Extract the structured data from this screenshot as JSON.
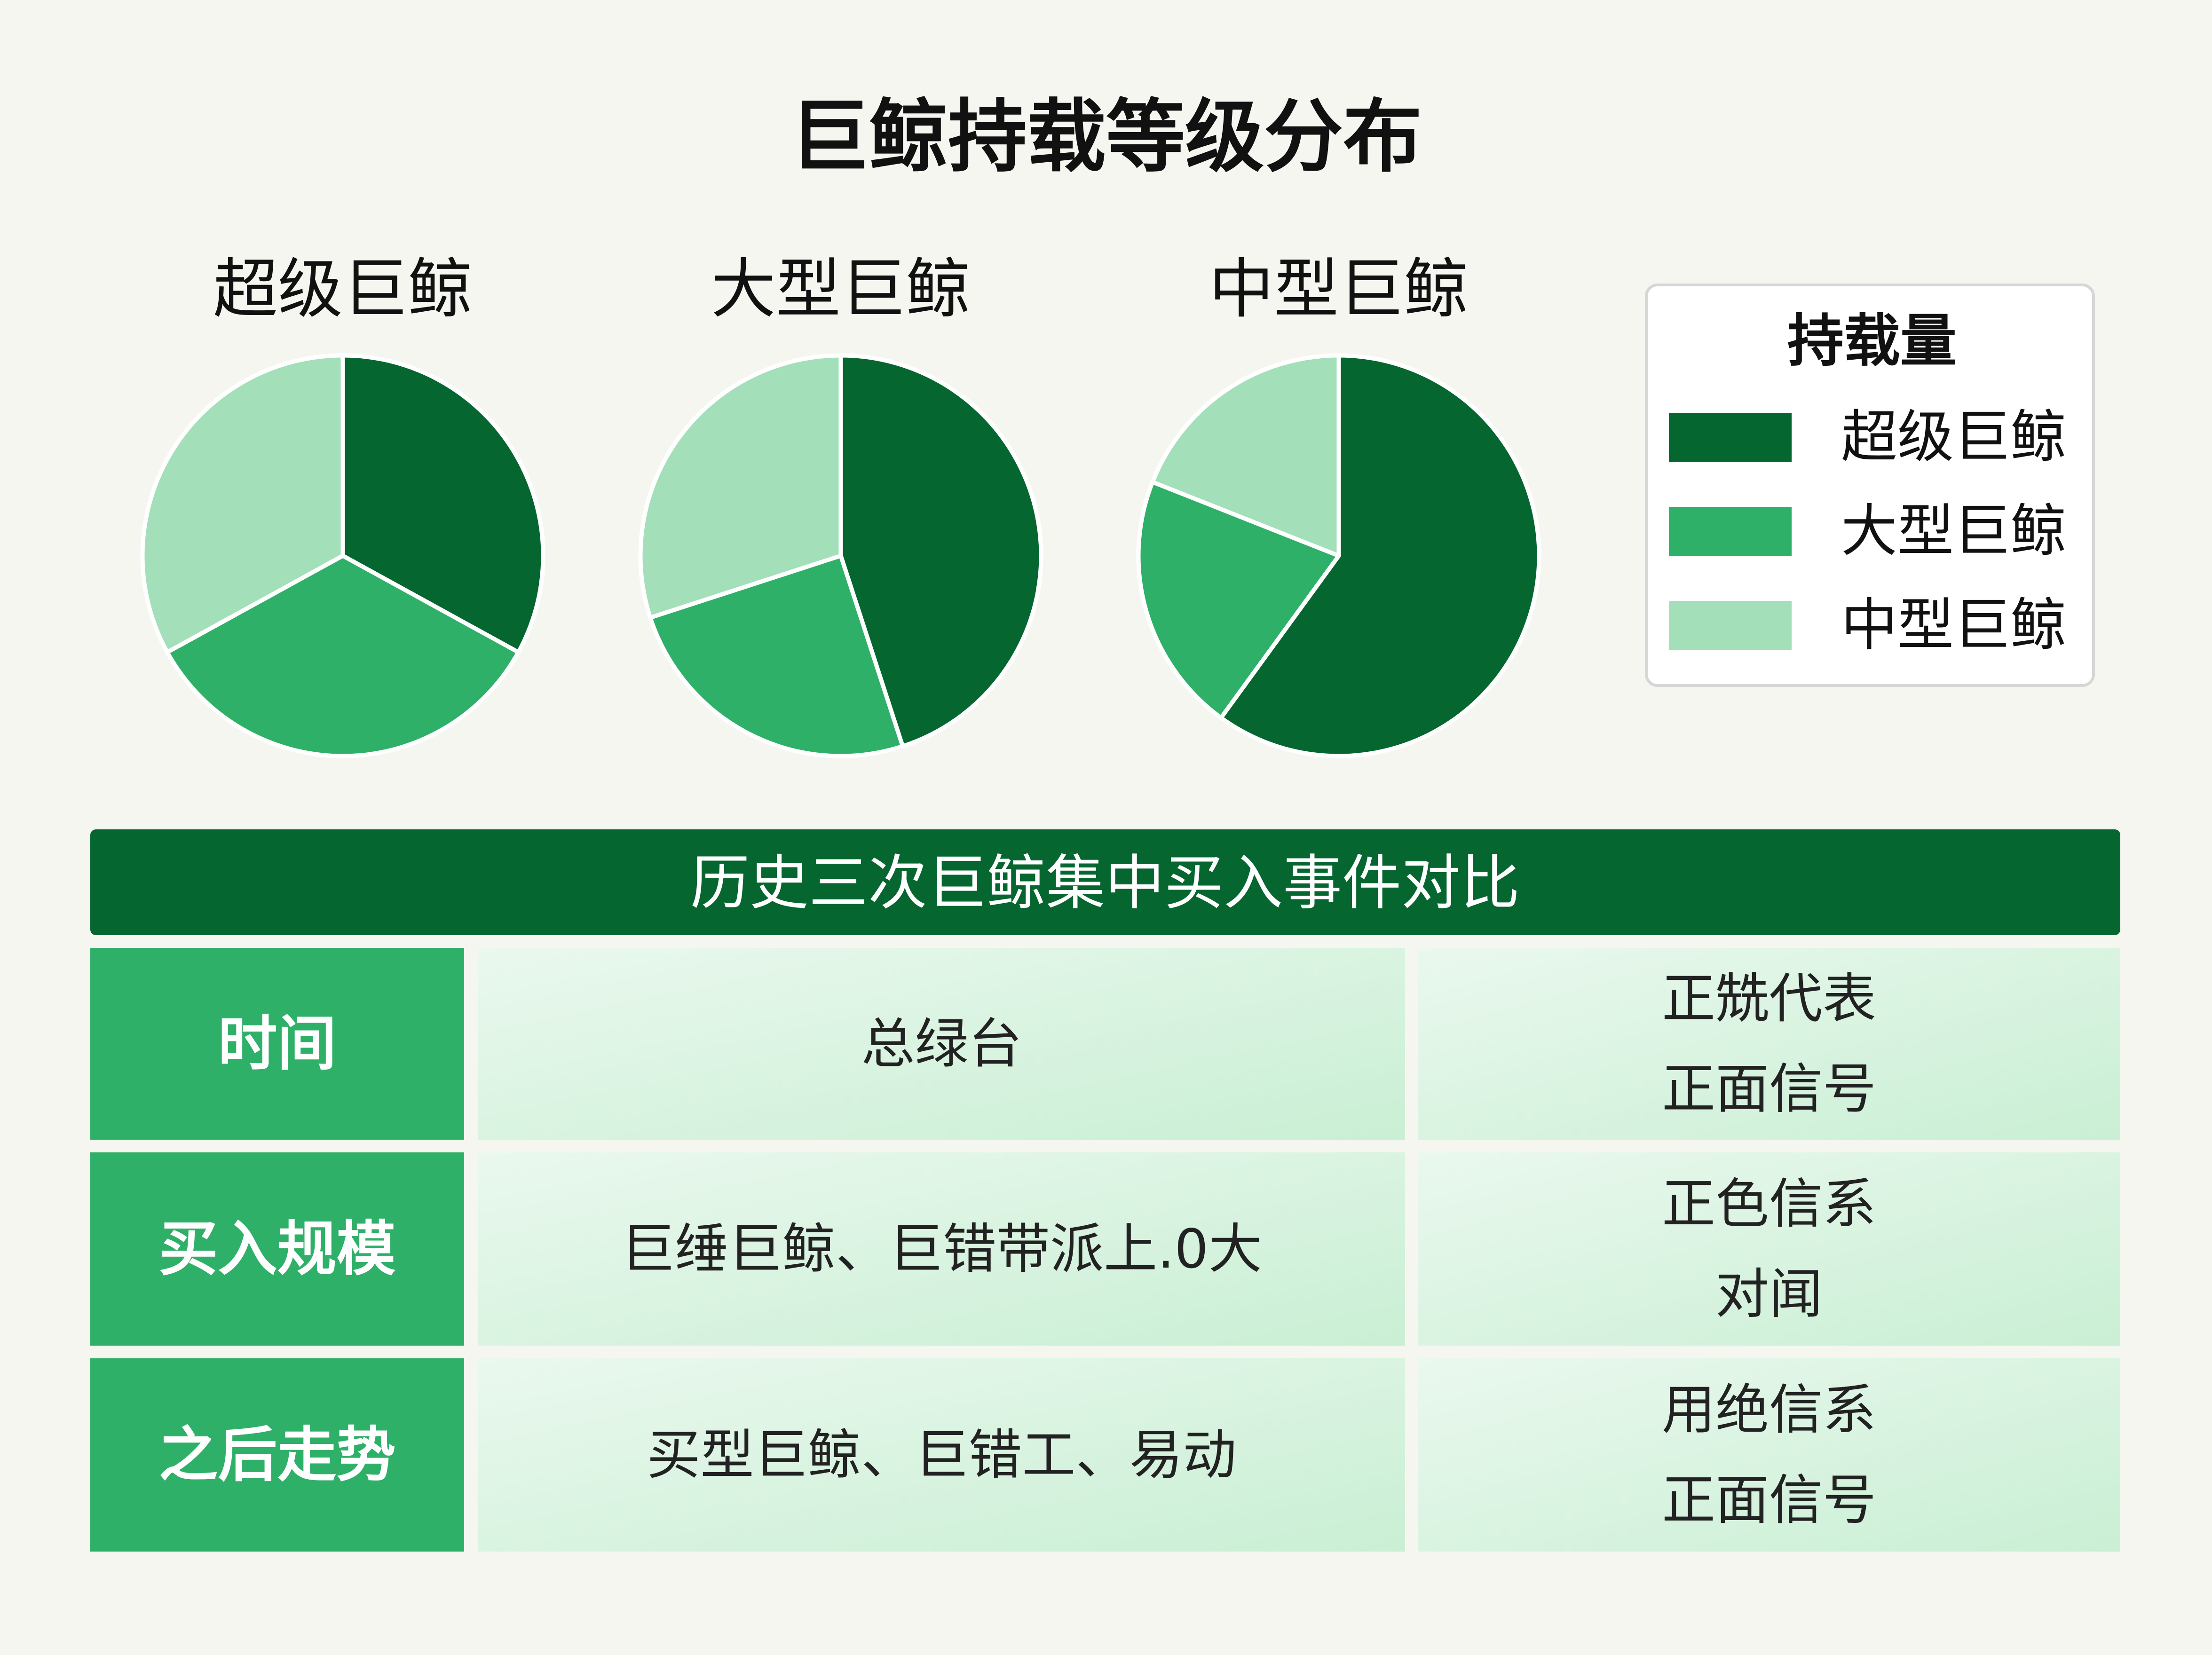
{
  "title": "巨鲸持载等级分布",
  "legend_title": "持载量",
  "chart_data": [
    {
      "type": "pie",
      "title": "超级巨鲸",
      "categories": [
        "超级巨鲸",
        "大型巨鲸",
        "中型巨鲸"
      ],
      "values": [
        33,
        34,
        33
      ],
      "colors": [
        "#05662f",
        "#2fb068",
        "#a3dfb8"
      ]
    },
    {
      "type": "pie",
      "title": "大型巨鲸",
      "categories": [
        "超级巨鲸",
        "大型巨鲸",
        "中型巨鲸"
      ],
      "values": [
        45,
        25,
        30
      ],
      "colors": [
        "#05662f",
        "#2fb068",
        "#a3dfb8"
      ]
    },
    {
      "type": "pie",
      "title": "中型巨鲸",
      "categories": [
        "超级巨鲸",
        "大型巨鲸",
        "中型巨鲸"
      ],
      "values": [
        60,
        21,
        19
      ],
      "colors": [
        "#05662f",
        "#2fb068",
        "#a3dfb8"
      ]
    }
  ],
  "table": {
    "title": "历史三次巨鲸集中买入事件对比",
    "rows": [
      [
        "时间",
        "总绿台",
        [
          "正兟代表",
          "正面信号"
        ]
      ],
      [
        "买入规模",
        "巨缍巨鲸、巨错带派上.0大",
        [
          "正色信系",
          "对闻"
        ]
      ],
      [
        "之后走势",
        "买型巨鲸、巨错工、易动",
        [
          "用绝信系",
          "正面信号"
        ]
      ]
    ]
  }
}
